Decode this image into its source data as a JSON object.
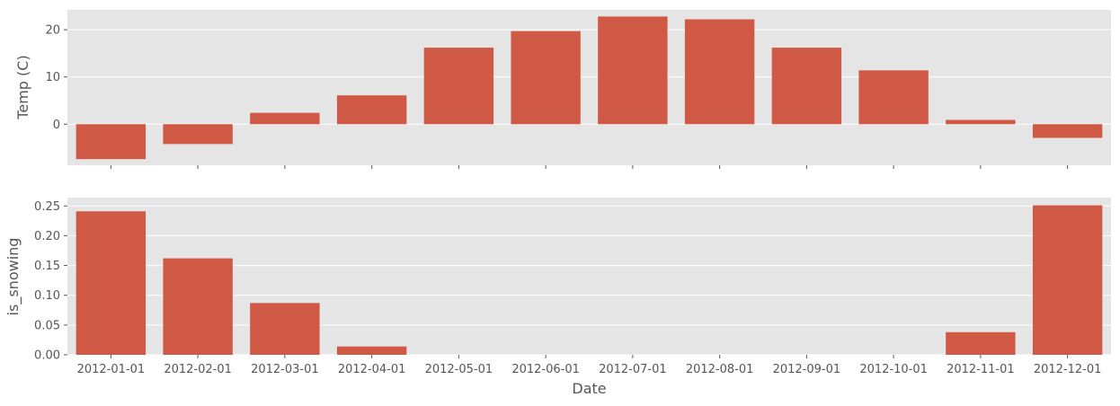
{
  "chart_data": [
    {
      "type": "bar",
      "categories": [
        "2012-01-01",
        "2012-02-01",
        "2012-03-01",
        "2012-04-01",
        "2012-05-01",
        "2012-06-01",
        "2012-07-01",
        "2012-08-01",
        "2012-09-01",
        "2012-10-01",
        "2012-11-01",
        "2012-12-01"
      ],
      "values": [
        -7.4,
        -4.2,
        2.4,
        6.1,
        16.2,
        19.7,
        22.8,
        22.2,
        16.2,
        11.4,
        0.9,
        -2.9
      ],
      "title": "",
      "xlabel": "",
      "ylabel": "Temp (C)",
      "ylim": [
        -8.7,
        24.2
      ],
      "yticks": [
        0,
        10,
        20
      ],
      "ytick_labels": [
        "0",
        "10",
        "20"
      ],
      "show_xtick_labels": false,
      "grid": true,
      "bar_color": "#cf5944",
      "background": "#e5e5e5"
    },
    {
      "type": "bar",
      "categories": [
        "2012-01-01",
        "2012-02-01",
        "2012-03-01",
        "2012-04-01",
        "2012-05-01",
        "2012-06-01",
        "2012-07-01",
        "2012-08-01",
        "2012-09-01",
        "2012-10-01",
        "2012-11-01",
        "2012-12-01"
      ],
      "values": [
        0.241,
        0.162,
        0.087,
        0.014,
        0.0,
        0.0,
        0.0,
        0.0,
        0.0,
        0.0,
        0.038,
        0.251
      ],
      "title": "",
      "xlabel": "Date",
      "ylabel": "is_snowing",
      "ylim": [
        0,
        0.264
      ],
      "yticks": [
        0,
        0.05,
        0.1,
        0.15,
        0.2,
        0.25
      ],
      "ytick_labels": [
        "0.00",
        "0.05",
        "0.10",
        "0.15",
        "0.20",
        "0.25"
      ],
      "show_xtick_labels": true,
      "grid": true,
      "bar_color": "#cf5944",
      "background": "#e5e5e5"
    }
  ]
}
